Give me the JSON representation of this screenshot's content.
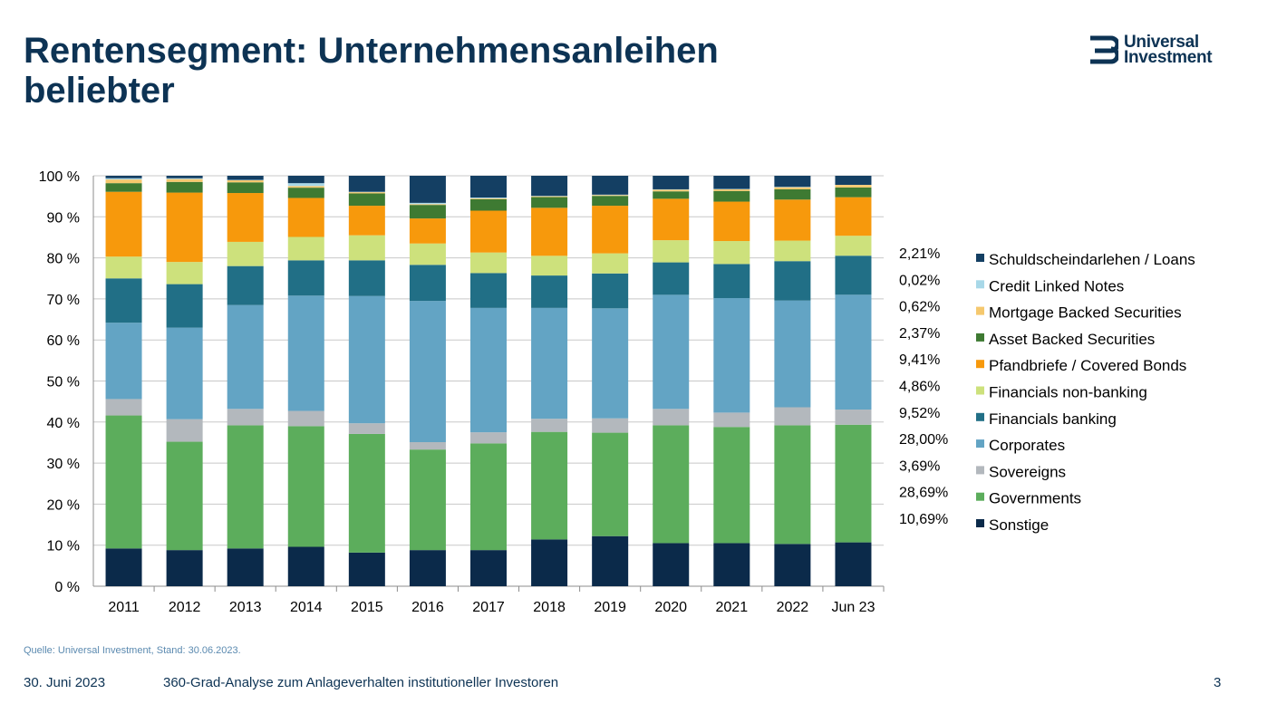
{
  "header": {
    "title": "Rentensegment: Unternehmensanleihen beliebter",
    "logo_line1": "Universal",
    "logo_line2": "Investment",
    "logo_icon": "universal-investment-logo-icon"
  },
  "source": "Quelle: Universal Investment, Stand: 30.06.2023.",
  "footer": {
    "date": "30. Juni 2023",
    "subject": "360-Grad-Analyse zum Anlageverhalten institutioneller Investoren",
    "page": "3"
  },
  "colors": {
    "title": "#0d3354",
    "axis": "#595959",
    "grid": "#bfbfbf"
  },
  "chart_data": {
    "type": "bar",
    "stacked": true,
    "percent_stacked": true,
    "categories": [
      "2011",
      "2012",
      "2013",
      "2014",
      "2015",
      "2016",
      "2017",
      "2018",
      "2019",
      "2020",
      "2021",
      "2022",
      "Jun 23"
    ],
    "ylim": [
      0,
      100
    ],
    "yticks": [
      0,
      10,
      20,
      30,
      40,
      50,
      60,
      70,
      80,
      90,
      100
    ],
    "ytick_labels": [
      "0 %",
      "10 %",
      "20 %",
      "30 %",
      "40 %",
      "50 %",
      "60 %",
      "70 %",
      "80 %",
      "90 %",
      "100 %"
    ],
    "grid": true,
    "legend_position": "right",
    "series": [
      {
        "name": "Sonstige",
        "color": "#0b2a4a",
        "values": [
          9.2,
          8.8,
          9.2,
          9.6,
          8.2,
          8.8,
          8.8,
          11.4,
          12.2,
          10.5,
          10.5,
          10.3,
          10.69
        ]
      },
      {
        "name": "Governments",
        "color": "#5cad5c",
        "values": [
          32.4,
          26.4,
          30.0,
          29.4,
          28.9,
          24.5,
          26.0,
          26.2,
          25.2,
          28.7,
          28.3,
          28.9,
          28.69
        ]
      },
      {
        "name": "Sovereigns",
        "color": "#b3b8bd",
        "values": [
          4.0,
          5.5,
          4.0,
          3.7,
          2.6,
          1.8,
          2.7,
          3.2,
          3.5,
          4.0,
          3.5,
          4.4,
          3.69
        ]
      },
      {
        "name": "Corporates",
        "color": "#63a4c4",
        "values": [
          18.6,
          22.3,
          25.3,
          28.1,
          31.0,
          34.4,
          30.3,
          27.0,
          26.8,
          27.8,
          27.9,
          26.0,
          28.0
        ]
      },
      {
        "name": "Financials banking",
        "color": "#216f86",
        "values": [
          10.8,
          10.6,
          9.5,
          8.6,
          8.7,
          8.8,
          8.5,
          7.9,
          8.5,
          7.9,
          8.3,
          9.6,
          9.52
        ]
      },
      {
        "name": "Financials non-banking",
        "color": "#cde17c",
        "values": [
          5.3,
          5.4,
          5.9,
          5.7,
          6.1,
          5.2,
          5.0,
          4.8,
          4.9,
          5.4,
          5.6,
          5.0,
          4.86
        ]
      },
      {
        "name": "Pfandbriefe / Covered Bonds",
        "color": "#f7990c",
        "values": [
          15.8,
          16.9,
          11.9,
          9.5,
          7.2,
          6.1,
          10.2,
          11.7,
          11.6,
          10.1,
          9.6,
          10.0,
          9.41
        ]
      },
      {
        "name": "Asset Backed Securities",
        "color": "#3e7a32",
        "values": [
          2.1,
          2.6,
          2.6,
          2.5,
          3.0,
          3.3,
          2.8,
          2.6,
          2.4,
          1.8,
          2.6,
          2.5,
          2.37
        ]
      },
      {
        "name": "Mortgage Backed Securities",
        "color": "#f5c86e",
        "values": [
          0.9,
          0.7,
          0.5,
          0.4,
          0.3,
          0.2,
          0.2,
          0.2,
          0.2,
          0.4,
          0.4,
          0.5,
          0.62
        ]
      },
      {
        "name": "Credit Linked Notes",
        "color": "#a8d8e8",
        "values": [
          0.3,
          0.2,
          0.1,
          0.7,
          0.1,
          0.3,
          0.2,
          0.1,
          0.1,
          0.1,
          0.1,
          0.1,
          0.02
        ]
      },
      {
        "name": "Schuldscheindarlehen / Loans",
        "color": "#143f63",
        "values": [
          0.6,
          0.6,
          1.0,
          1.8,
          3.9,
          6.6,
          5.3,
          4.9,
          4.6,
          3.3,
          3.2,
          2.7,
          2.21
        ]
      }
    ],
    "latest_labels": [
      "2,21%",
      "0,02%",
      "0,62%",
      "2,37%",
      "9,41%",
      "4,86%",
      "9,52%",
      "28,00%",
      "3,69%",
      "28,69%",
      "10,69%"
    ],
    "legend_order": [
      "Schuldscheindarlehen / Loans",
      "Credit Linked Notes",
      "Mortgage Backed Securities",
      "Asset Backed Securities",
      "Pfandbriefe / Covered Bonds",
      "Financials non-banking",
      "Financials banking",
      "Corporates",
      "Sovereigns",
      "Governments",
      "Sonstige"
    ]
  }
}
